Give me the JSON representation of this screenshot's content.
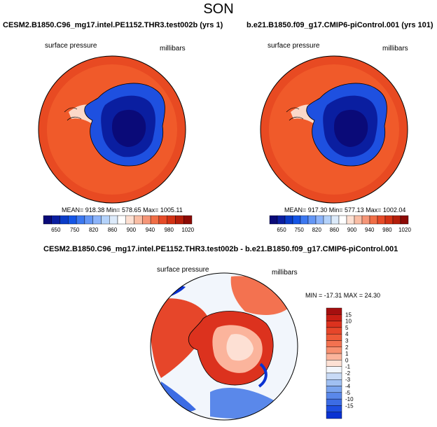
{
  "page_title": "SON",
  "panels": [
    {
      "title": "CESM2.B1850.C96_mg17.intel.PE1152.THR3.test002b (yrs 1)",
      "variable": "surface pressure",
      "units": "millibars",
      "stats": "MEAN= 918.38   Min= 578.65   Max= 1005.11"
    },
    {
      "title": "b.e21.B1850.f09_g17.CMIP6-piControl.001 (yrs 101)",
      "variable": "surface pressure",
      "units": "millibars",
      "stats": "MEAN= 917.30   Min= 577.13   Max= 1002.04"
    },
    {
      "title": "CESM2.B1850.C96_mg17.intel.PE1152.THR3.test002b - b.e21.B1850.f09_g17.CMIP6-piControl.001",
      "variable": "surface pressure",
      "units": "millibars",
      "stats": "MIN = -17.31 MAX =  24.30"
    }
  ],
  "colors": {
    "ocean_field": "#f05a2a",
    "ring": "#e84a22",
    "deep_blue": "#0a0a78"
  },
  "chart_data": [
    {
      "type": "heatmap",
      "title": "CESM2.B1850.C96_mg17.intel.PE1152.THR3.test002b (yrs 1)",
      "projection": "south polar stereographic",
      "variable": "surface pressure",
      "units": "millibars",
      "mean": 918.38,
      "min": 578.65,
      "max": 1005.11,
      "colorbar": {
        "orientation": "horizontal",
        "levels": [
          "650",
          "750",
          "820",
          "860",
          "900",
          "940",
          "980",
          "1020"
        ],
        "colors": [
          "#0a0a78",
          "#0a1ea0",
          "#0a3cc8",
          "#1455e6",
          "#3c78f0",
          "#6496f5",
          "#8cb4fa",
          "#b4d2fa",
          "#dceafa",
          "#ffffff",
          "#fde0d2",
          "#fabea5",
          "#f59678",
          "#f06e46",
          "#e64b28",
          "#d23214",
          "#b41e0a",
          "#8c0a05"
        ]
      }
    },
    {
      "type": "heatmap",
      "title": "b.e21.B1850.f09_g17.CMIP6-piControl.001 (yrs 101)",
      "projection": "south polar stereographic",
      "variable": "surface pressure",
      "units": "millibars",
      "mean": 917.3,
      "min": 577.13,
      "max": 1002.04,
      "colorbar": {
        "orientation": "horizontal",
        "levels": [
          "650",
          "750",
          "820",
          "860",
          "900",
          "940",
          "980",
          "1020"
        ],
        "colors": [
          "#0a0a78",
          "#0a1ea0",
          "#0a3cc8",
          "#1455e6",
          "#3c78f0",
          "#6496f5",
          "#8cb4fa",
          "#b4d2fa",
          "#dceafa",
          "#ffffff",
          "#fde0d2",
          "#fabea5",
          "#f59678",
          "#f06e46",
          "#e64b28",
          "#d23214",
          "#b41e0a",
          "#8c0a05"
        ]
      }
    },
    {
      "type": "heatmap",
      "title": "CESM2.B1850.C96_mg17.intel.PE1152.THR3.test002b - b.e21.B1850.f09_g17.CMIP6-piControl.001",
      "projection": "south polar stereographic",
      "variable": "surface pressure difference",
      "units": "millibars",
      "min": -17.31,
      "max": 24.3,
      "colorbar": {
        "orientation": "vertical",
        "levels": [
          "15",
          "10",
          "5",
          "4",
          "3",
          "2",
          "1",
          "0",
          "-1",
          "-2",
          "-3",
          "-4",
          "-5",
          "-10",
          "-15"
        ],
        "colors": [
          "#a50f0f",
          "#c81e14",
          "#dc321e",
          "#e6462a",
          "#ee5a38",
          "#f37250",
          "#f79070",
          "#fbb49c",
          "#fde0d4",
          "#f2f6fc",
          "#c8daf6",
          "#a0c0f2",
          "#7aa4ee",
          "#5a88ea",
          "#3c6ce4",
          "#1e4ee0",
          "#0a32d2"
        ]
      }
    }
  ]
}
